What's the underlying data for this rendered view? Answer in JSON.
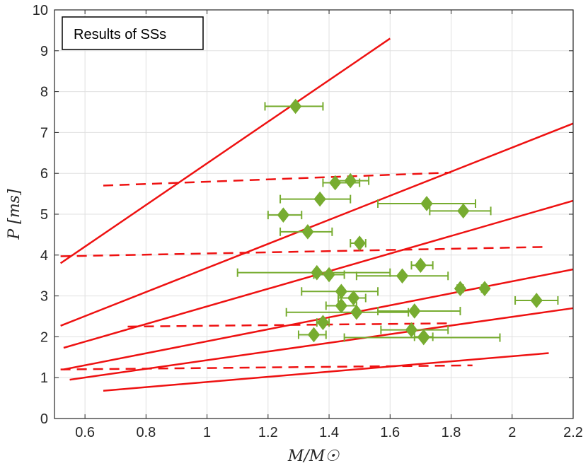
{
  "chart_data": {
    "type": "scatter",
    "legend": "Results of SSs",
    "legend_position": "top-left",
    "xlabel": "M/M☉",
    "ylabel": "P [ms]",
    "xlim": [
      0.5,
      2.2
    ],
    "ylim": [
      0,
      10
    ],
    "grid": true,
    "xticks": [
      0.6,
      0.8,
      1,
      1.2,
      1.4,
      1.6,
      1.8,
      2,
      2.2
    ],
    "xtick_labels": [
      "0.6",
      "0.8",
      "1",
      "1.2",
      "1.4",
      "1.6",
      "1.8",
      "2",
      "2.2"
    ],
    "yticks": [
      0,
      1,
      2,
      3,
      4,
      5,
      6,
      7,
      8,
      9,
      10
    ],
    "ytick_labels": [
      "0",
      "1",
      "2",
      "3",
      "4",
      "5",
      "6",
      "7",
      "8",
      "9",
      "10"
    ],
    "colors": {
      "lines": "#ee1111",
      "points": "#77ac30",
      "axes": "#262626",
      "grid": "#e0e0e0"
    },
    "solid_lines": [
      {
        "x": [
          0.52,
          1.6
        ],
        "y": [
          3.8,
          9.3
        ]
      },
      {
        "x": [
          0.52,
          2.2
        ],
        "y": [
          2.27,
          7.22
        ]
      },
      {
        "x": [
          0.53,
          2.2
        ],
        "y": [
          1.73,
          5.33
        ]
      },
      {
        "x": [
          0.53,
          2.2
        ],
        "y": [
          1.2,
          3.65
        ]
      },
      {
        "x": [
          0.55,
          2.2
        ],
        "y": [
          0.95,
          2.7
        ]
      },
      {
        "x": [
          0.66,
          2.12
        ],
        "y": [
          0.68,
          1.6
        ]
      }
    ],
    "dashed_lines": [
      {
        "x": [
          0.66,
          1.8
        ],
        "y": [
          5.7,
          6.02
        ]
      },
      {
        "x": [
          0.52,
          2.12
        ],
        "y": [
          3.97,
          4.2
        ]
      },
      {
        "x": [
          0.74,
          1.8
        ],
        "y": [
          2.25,
          2.33
        ]
      },
      {
        "x": [
          0.52,
          1.87
        ],
        "y": [
          1.2,
          1.3
        ]
      }
    ],
    "points": [
      {
        "x": 1.29,
        "y": 7.64,
        "xerr": [
          1.19,
          1.38
        ]
      },
      {
        "x": 1.42,
        "y": 5.77,
        "xerr": [
          1.38,
          1.5
        ]
      },
      {
        "x": 1.47,
        "y": 5.82,
        "xerr": [
          1.42,
          1.53
        ]
      },
      {
        "x": 1.37,
        "y": 5.37,
        "xerr": [
          1.24,
          1.47
        ]
      },
      {
        "x": 1.72,
        "y": 5.26,
        "xerr": [
          1.56,
          1.88
        ]
      },
      {
        "x": 1.84,
        "y": 5.08,
        "xerr": [
          1.73,
          1.93
        ]
      },
      {
        "x": 1.25,
        "y": 4.98,
        "xerr": [
          1.2,
          1.31
        ]
      },
      {
        "x": 1.33,
        "y": 4.57,
        "xerr": [
          1.24,
          1.41
        ]
      },
      {
        "x": 1.5,
        "y": 4.29,
        "xerr": [
          1.47,
          1.52
        ]
      },
      {
        "x": 1.7,
        "y": 3.75,
        "xerr": [
          1.67,
          1.74
        ]
      },
      {
        "x": 1.36,
        "y": 3.57,
        "xerr": [
          1.1,
          1.6
        ]
      },
      {
        "x": 1.4,
        "y": 3.52,
        "xerr": [
          1.35,
          1.45
        ]
      },
      {
        "x": 1.64,
        "y": 3.49,
        "xerr": [
          1.49,
          1.79
        ]
      },
      {
        "x": 1.83,
        "y": 3.18,
        "xerr": [
          1.82,
          1.84
        ]
      },
      {
        "x": 1.91,
        "y": 3.18,
        "xerr": [
          1.9,
          1.91
        ]
      },
      {
        "x": 1.44,
        "y": 3.11,
        "xerr": [
          1.31,
          1.56
        ]
      },
      {
        "x": 1.48,
        "y": 2.95,
        "xerr": [
          1.43,
          1.52
        ]
      },
      {
        "x": 2.08,
        "y": 2.89,
        "xerr": [
          2.01,
          2.15
        ]
      },
      {
        "x": 1.44,
        "y": 2.76,
        "xerr": [
          1.39,
          1.49
        ]
      },
      {
        "x": 1.68,
        "y": 2.63,
        "xerr": [
          1.56,
          1.83
        ]
      },
      {
        "x": 1.49,
        "y": 2.6,
        "xerr": [
          1.26,
          1.66
        ]
      },
      {
        "x": 1.38,
        "y": 2.35,
        "xerr": [
          1.36,
          1.4
        ]
      },
      {
        "x": 1.67,
        "y": 2.17,
        "xerr": [
          1.57,
          1.79
        ]
      },
      {
        "x": 1.35,
        "y": 2.05,
        "xerr": [
          1.3,
          1.39
        ]
      },
      {
        "x": 1.71,
        "y": 2.0,
        "xerr": [
          1.68,
          1.74
        ]
      },
      {
        "x": 1.71,
        "y": 1.98,
        "xerr": [
          1.45,
          1.96
        ]
      }
    ]
  }
}
